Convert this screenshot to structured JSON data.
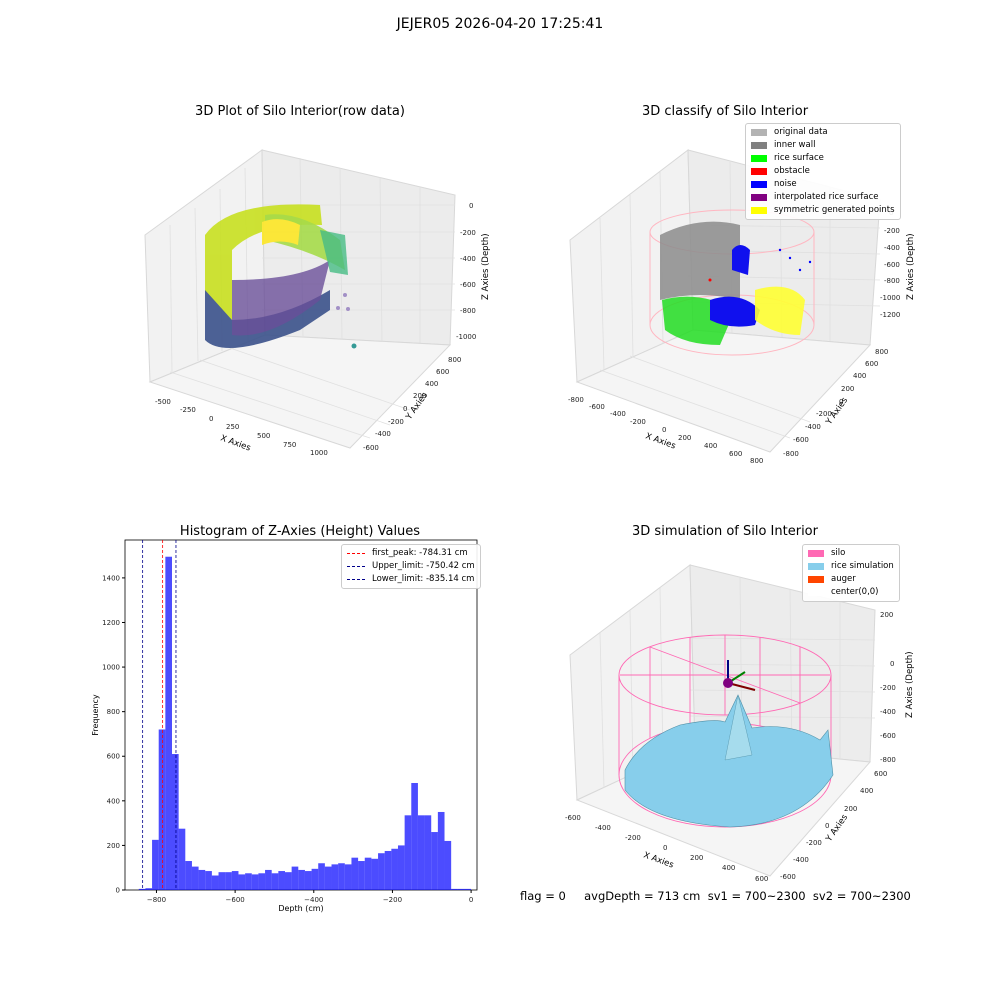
{
  "suptitle": "JEJER05 2026-04-20 17:25:41",
  "footer": "flag = 0     avgDepth = 713 cm  sv1 = 700~2300  sv2 = 700~2300",
  "panels": {
    "raw": {
      "title": "3D Plot of Silo Interior(row data)",
      "xlabel": "X Axies",
      "ylabel": "Y Axies",
      "zlabel": "Z Axies (Depth)",
      "xticks": [
        "-500",
        "-250",
        "0",
        "250",
        "500",
        "750",
        "1000"
      ],
      "yticks": [
        "-600",
        "-400",
        "-200",
        "0",
        "200",
        "400",
        "600",
        "800"
      ],
      "zticks": [
        "0",
        "-200",
        "-400",
        "-600",
        "-800",
        "-1000"
      ]
    },
    "classify": {
      "title": "3D classify of Silo Interior",
      "xlabel": "X Axies",
      "ylabel": "Y Axies",
      "zlabel": "Z Axies (Depth)",
      "xticks": [
        "-800",
        "-600",
        "-400",
        "-200",
        "0",
        "200",
        "400",
        "600",
        "800"
      ],
      "yticks": [
        "-800",
        "-600",
        "-400",
        "-200",
        "0",
        "200",
        "400",
        "600",
        "800"
      ],
      "zticks": [
        "-200",
        "-400",
        "-600",
        "-800",
        "-1000",
        "-1200"
      ],
      "zticks_hidden_top": "0",
      "legend": [
        {
          "label": "original data",
          "color": "#b3b3b3"
        },
        {
          "label": "inner wall",
          "color": "#808080"
        },
        {
          "label": "rice surface",
          "color": "#00ff00"
        },
        {
          "label": "obstacle",
          "color": "#ff0000"
        },
        {
          "label": "noise",
          "color": "#0000ff"
        },
        {
          "label": "interpolated rice surface",
          "color": "#800080"
        },
        {
          "label": "symmetric generated points",
          "color": "#ffff00"
        }
      ]
    },
    "simulation": {
      "title": "3D simulation of Silo Interior",
      "xlabel": "X Axies",
      "ylabel": "Y Axies",
      "zlabel": "Z Axies (Depth)",
      "xticks": [
        "-600",
        "-400",
        "-200",
        "0",
        "200",
        "400",
        "600"
      ],
      "yticks": [
        "-600",
        "-400",
        "-200",
        "0",
        "200",
        "400",
        "600"
      ],
      "zticks": [
        "200",
        "0",
        "-200",
        "-400",
        "-600",
        "-800"
      ],
      "legend": [
        {
          "label": "silo",
          "color": "#ff69b4"
        },
        {
          "label": "rice simulation",
          "color": "#87ceeb"
        },
        {
          "label": "auger",
          "color": "#ff4500"
        },
        {
          "label": "center(0,0)",
          "color": "#ffffff"
        }
      ]
    }
  },
  "chart_data": [
    {
      "type": "bar",
      "title": "Histogram of Z-Axies (Height) Values",
      "xlabel": "Depth (cm)",
      "ylabel": "Frequency",
      "xlim": [
        -880,
        15
      ],
      "ylim": [
        0,
        1570
      ],
      "xticks": [
        -800,
        -600,
        -400,
        -200,
        0
      ],
      "yticks": [
        0,
        200,
        400,
        600,
        800,
        1000,
        1200,
        1400
      ],
      "color": "#0000ff",
      "bin_width": 16.9,
      "bin_starts": [
        -845.0,
        -828.1,
        -811.2,
        -794.3,
        -777.4,
        -760.5,
        -743.6,
        -726.7,
        -709.8,
        -692.9,
        -676.0,
        -659.1,
        -642.2,
        -625.3,
        -608.4,
        -591.5,
        -574.6,
        -557.7,
        -540.8,
        -523.9,
        -507.0,
        -490.1,
        -473.2,
        -456.3,
        -439.4,
        -422.5,
        -405.6,
        -388.7,
        -371.8,
        -354.9,
        -338.0,
        -321.1,
        -304.2,
        -287.3,
        -270.4,
        -253.5,
        -236.6,
        -219.7,
        -202.8,
        -185.9,
        -169.0,
        -152.1,
        -135.2,
        -118.3,
        -101.4,
        -84.5,
        -67.6,
        -50.7,
        -33.8,
        -16.9
      ],
      "values": [
        5,
        8,
        225,
        720,
        1495,
        610,
        275,
        130,
        105,
        90,
        85,
        65,
        80,
        80,
        85,
        70,
        75,
        70,
        75,
        90,
        75,
        85,
        80,
        105,
        90,
        85,
        95,
        120,
        105,
        115,
        120,
        115,
        145,
        130,
        145,
        140,
        165,
        175,
        185,
        200,
        335,
        480,
        335,
        335,
        260,
        350,
        220,
        5,
        5,
        5
      ],
      "vlines": [
        {
          "label": "first_peak: -784.31 cm",
          "x": -784.31,
          "color": "#ff0000"
        },
        {
          "label": "Upper_limit: -750.42 cm",
          "x": -750.42,
          "color": "#00008b"
        },
        {
          "label": "Lower_limit: -835.14 cm",
          "x": -835.14,
          "color": "#00008b"
        }
      ],
      "legend_position": "top-right"
    }
  ]
}
